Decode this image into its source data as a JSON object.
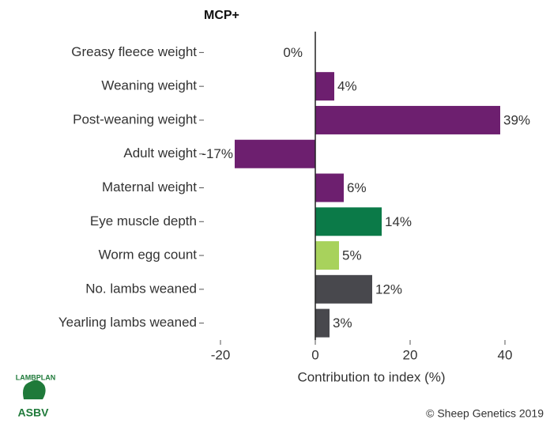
{
  "chart_data": {
    "type": "barh",
    "title": "MCP+",
    "categories": [
      "Greasy fleece weight",
      "Weaning weight",
      "Post-weaning weight",
      "Adult weight",
      "Maternal weight",
      "Eye muscle depth",
      "Worm egg count",
      "No. lambs weaned",
      "Yearling lambs weaned"
    ],
    "values": [
      0,
      4,
      39,
      -17,
      6,
      14,
      5,
      12,
      3
    ],
    "value_labels": [
      "0%",
      "4%",
      "39%",
      "-17%",
      "6%",
      "14%",
      "5%",
      "12%",
      "3%"
    ],
    "colors": [
      "#6d1f6f",
      "#6d1f6f",
      "#6d1f6f",
      "#6d1f6f",
      "#6d1f6f",
      "#0b7a48",
      "#a8d25c",
      "#48484d",
      "#48484d"
    ],
    "xlim": [
      -23.5,
      43.5
    ],
    "xticks": [
      -20,
      0,
      20,
      40
    ],
    "xlabel": "Contribution to index (%)"
  },
  "logo": {
    "arc_text": "LAMBPLAN",
    "badge": "ASBV"
  },
  "footer": "© Sheep Genetics 2019"
}
